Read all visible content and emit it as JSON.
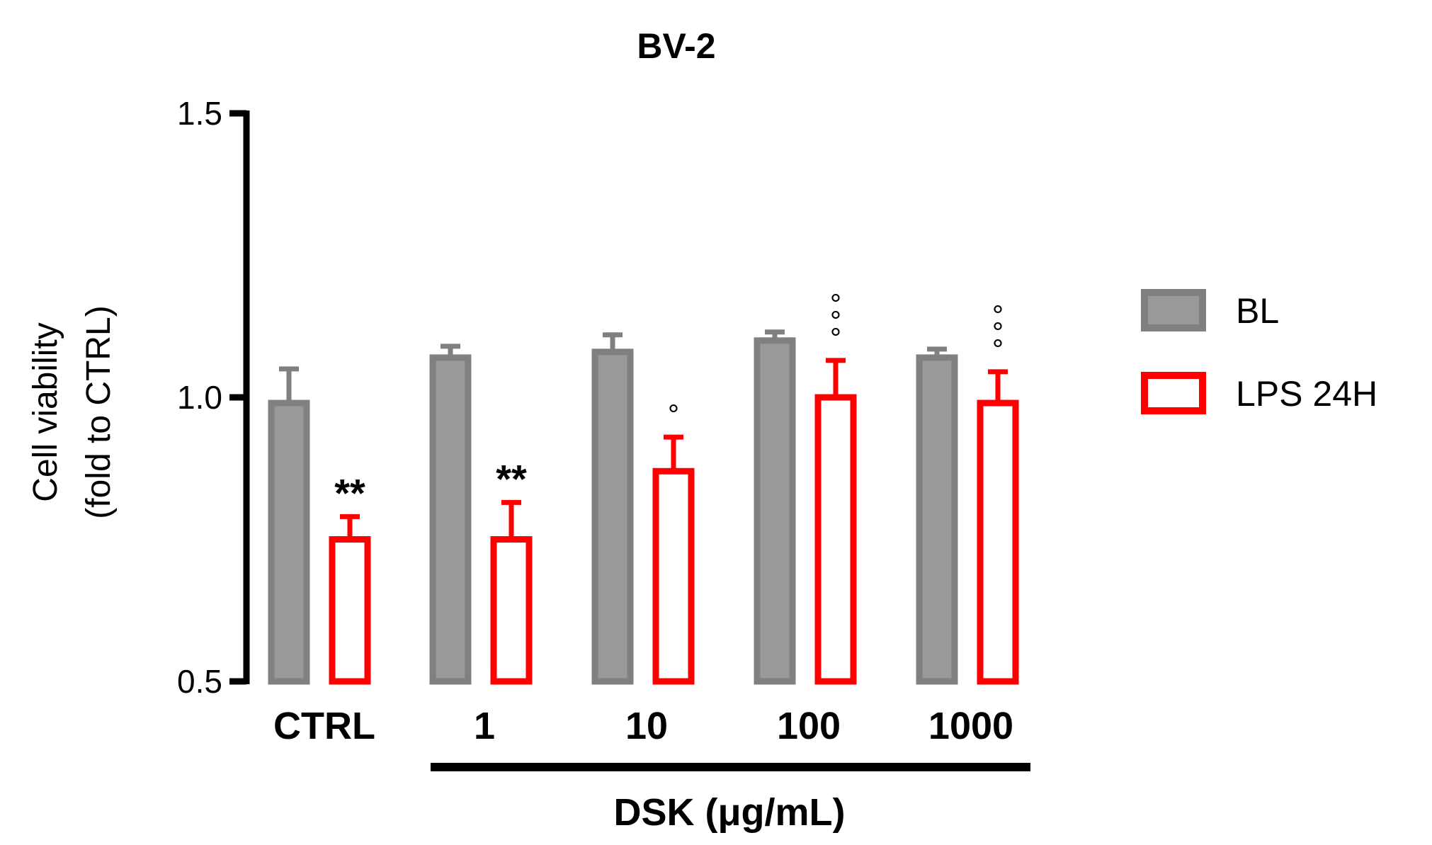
{
  "chart_data": {
    "type": "bar",
    "title": "BV-2",
    "ylabel_line1": "Cell viability",
    "ylabel_line2": "(fold to CTRL)",
    "xlabel": "DSK (μg/mL)",
    "ylim": [
      0.5,
      1.5
    ],
    "yticks": [
      "0.5",
      "1.0",
      "1.5"
    ],
    "categories": [
      "CTRL",
      "1",
      "10",
      "100",
      "1000"
    ],
    "series": [
      {
        "name": "BL",
        "color": "#808080",
        "fill": "#999999",
        "values": [
          0.99,
          1.07,
          1.08,
          1.1,
          1.07
        ],
        "errors": [
          0.06,
          0.02,
          0.03,
          0.015,
          0.015
        ],
        "annotations": [
          "",
          "",
          "",
          "",
          ""
        ]
      },
      {
        "name": "LPS 24H",
        "color": "#ff0000",
        "fill": "#ffffff",
        "values": [
          0.75,
          0.75,
          0.87,
          1.0,
          0.99
        ],
        "errors": [
          0.04,
          0.065,
          0.06,
          0.065,
          0.055
        ],
        "annotations": [
          "**",
          "**",
          "°",
          "°°°",
          "°°°"
        ]
      }
    ],
    "legend_position": "right",
    "grid": false
  }
}
